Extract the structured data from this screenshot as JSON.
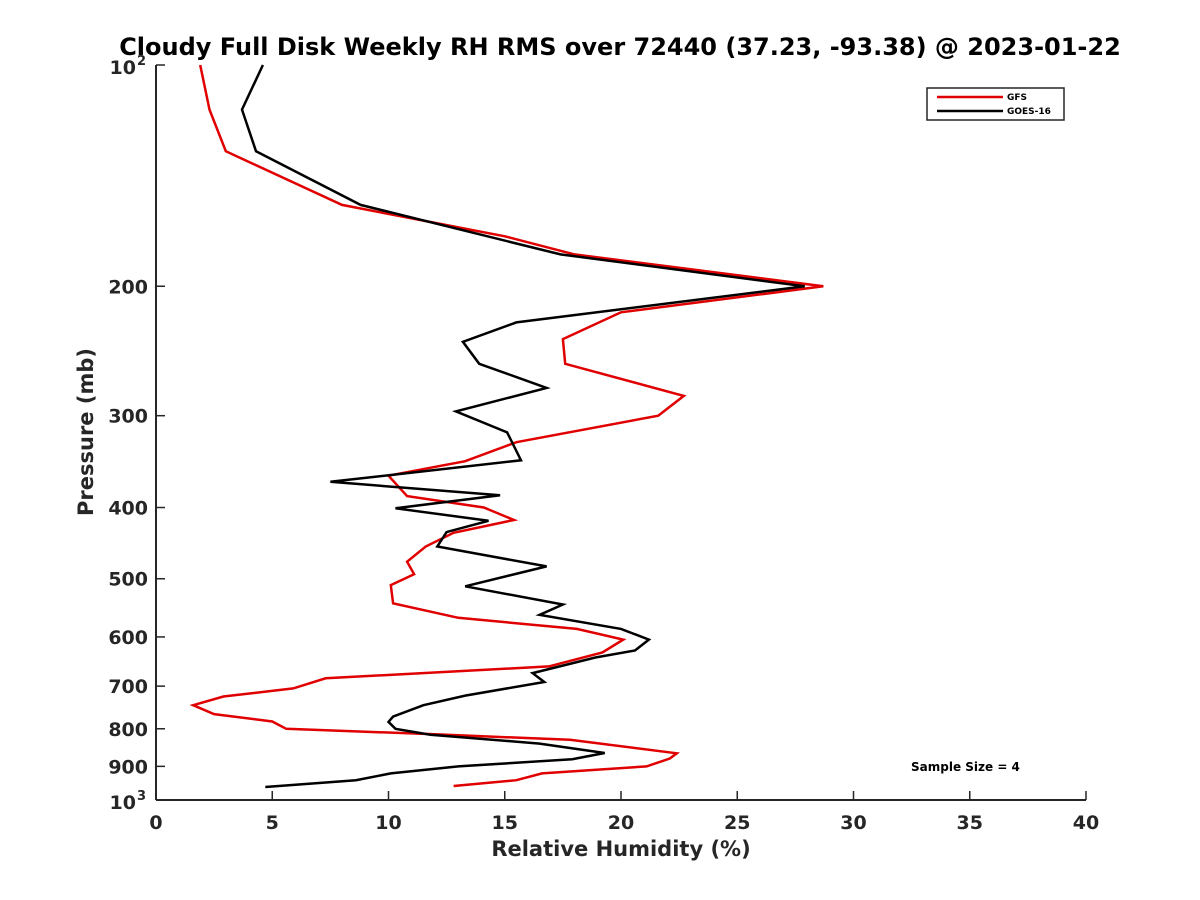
{
  "chart_data": {
    "type": "line",
    "title": "Cloudy Full Disk Weekly RH RMS over 72440 (37.23, -93.38) @ 2023-01-22",
    "xlabel": "Relative Humidity (%)",
    "ylabel": "Pressure (mb)",
    "xlim": [
      0,
      40
    ],
    "ylim": [
      100,
      1000
    ],
    "y_scale": "log",
    "y_reversed": true,
    "x_ticks": [
      "0",
      "5",
      "10",
      "15",
      "20",
      "25",
      "30",
      "35",
      "40"
    ],
    "y_ticks": [
      {
        "value": 100,
        "base": "10",
        "exp": "2"
      },
      {
        "value": 200,
        "label": "200"
      },
      {
        "value": 300,
        "label": "300"
      },
      {
        "value": 400,
        "label": "400"
      },
      {
        "value": 500,
        "label": "500"
      },
      {
        "value": 600,
        "label": "600"
      },
      {
        "value": 700,
        "label": "700"
      },
      {
        "value": 800,
        "label": "800"
      },
      {
        "value": 900,
        "label": "900"
      },
      {
        "value": 1000,
        "base": "10",
        "exp": "3"
      }
    ],
    "legend_position": "top-right",
    "annotation": "Sample Size = 4",
    "series": [
      {
        "name": "GFS",
        "color": "#e00000",
        "points": [
          [
            1.9,
            100
          ],
          [
            2.3,
            115
          ],
          [
            3.0,
            131
          ],
          [
            8.0,
            155
          ],
          [
            15.0,
            171
          ],
          [
            18.0,
            181
          ],
          [
            28.7,
            200
          ],
          [
            20.0,
            217
          ],
          [
            17.5,
            236
          ],
          [
            17.6,
            255
          ],
          [
            22.7,
            282
          ],
          [
            21.6,
            300
          ],
          [
            15.5,
            326
          ],
          [
            13.3,
            346
          ],
          [
            10.0,
            362
          ],
          [
            10.8,
            386
          ],
          [
            14.1,
            400
          ],
          [
            15.4,
            416
          ],
          [
            12.8,
            433
          ],
          [
            11.6,
            452
          ],
          [
            10.8,
            474
          ],
          [
            11.1,
            493
          ],
          [
            10.1,
            510
          ],
          [
            10.2,
            540
          ],
          [
            13.0,
            565
          ],
          [
            18.1,
            585
          ],
          [
            20.1,
            605
          ],
          [
            19.2,
            630
          ],
          [
            16.9,
            658
          ],
          [
            7.3,
            683
          ],
          [
            5.9,
            705
          ],
          [
            2.9,
            723
          ],
          [
            1.6,
            743
          ],
          [
            2.5,
            764
          ],
          [
            5.0,
            782
          ],
          [
            5.6,
            800
          ],
          [
            12.0,
            814
          ],
          [
            17.8,
            828
          ],
          [
            22.4,
            864
          ],
          [
            22.1,
            878
          ],
          [
            21.1,
            900
          ],
          [
            16.6,
            920
          ],
          [
            15.5,
            940
          ],
          [
            12.8,
            957
          ]
        ]
      },
      {
        "name": "GOES-16",
        "color": "#000000",
        "points": [
          [
            4.6,
            100
          ],
          [
            3.7,
            115
          ],
          [
            4.3,
            131
          ],
          [
            8.8,
            155
          ],
          [
            17.4,
            181
          ],
          [
            27.9,
            200
          ],
          [
            15.5,
            224
          ],
          [
            13.2,
            238
          ],
          [
            13.9,
            255
          ],
          [
            16.8,
            275
          ],
          [
            12.9,
            296
          ],
          [
            15.1,
            316
          ],
          [
            15.7,
            345
          ],
          [
            7.5,
            369
          ],
          [
            14.8,
            385
          ],
          [
            10.3,
            401
          ],
          [
            14.3,
            417
          ],
          [
            12.5,
            432
          ],
          [
            12.1,
            452
          ],
          [
            16.8,
            481
          ],
          [
            13.3,
            512
          ],
          [
            17.5,
            542
          ],
          [
            16.5,
            560
          ],
          [
            20.0,
            585
          ],
          [
            21.2,
            605
          ],
          [
            20.6,
            626
          ],
          [
            18.9,
            640
          ],
          [
            16.2,
            672
          ],
          [
            16.7,
            691
          ],
          [
            13.3,
            721
          ],
          [
            11.5,
            743
          ],
          [
            10.2,
            770
          ],
          [
            10.0,
            783
          ],
          [
            10.3,
            800
          ],
          [
            11.8,
            815
          ],
          [
            16.5,
            838
          ],
          [
            19.3,
            863
          ],
          [
            17.9,
            880
          ],
          [
            13.0,
            900
          ],
          [
            10.1,
            920
          ],
          [
            8.6,
            940
          ],
          [
            4.7,
            960
          ]
        ]
      }
    ]
  }
}
